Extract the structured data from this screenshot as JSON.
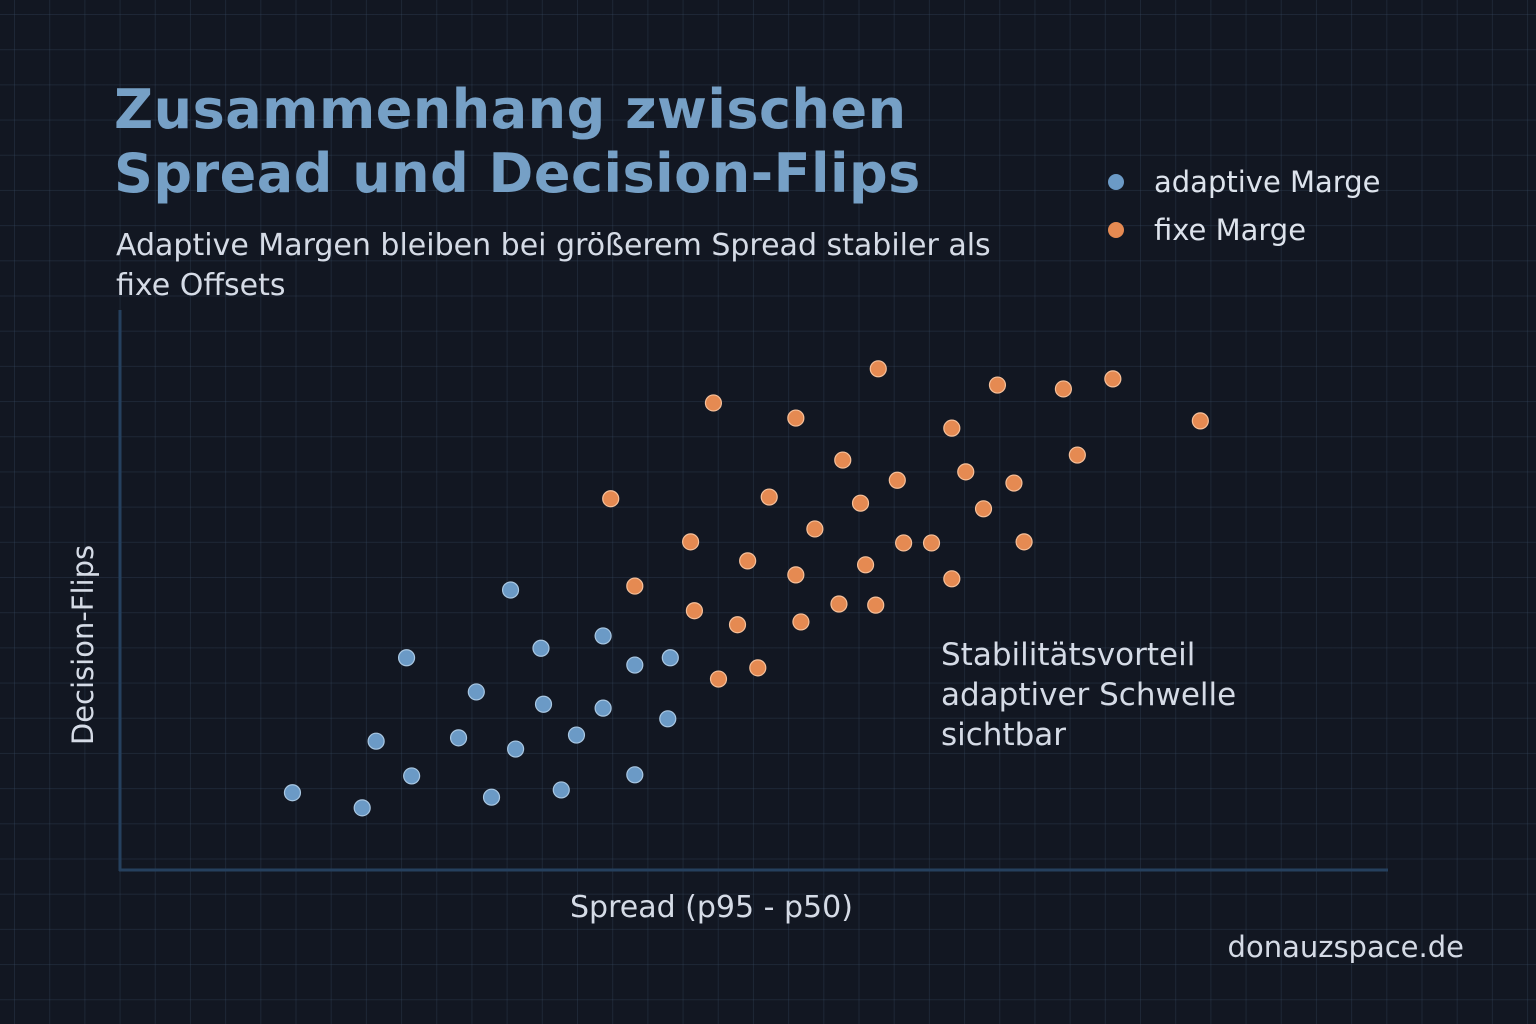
{
  "chart_data": {
    "type": "scatter",
    "title": "Zusammenhang zwischen Spread und Decision-Flips",
    "subtitle": "Adaptive Margen bleiben bei größerem Spread stabiler als fixe Offsets",
    "xlabel": "Spread (p95 - p50)",
    "ylabel": "Decision-Flips",
    "xlim": [
      0,
      10
    ],
    "ylim": [
      0,
      10
    ],
    "grid": true,
    "ticks_shown": false,
    "legend_position": "top-right",
    "annotation": [
      "Stabilitätsvorteil",
      "adaptiver Schwelle",
      "sichtbar"
    ],
    "series": [
      {
        "name": "adaptive Marge",
        "color": "#6b9ac6",
        "points": [
          [
            1.36,
            1.38
          ],
          [
            1.91,
            1.11
          ],
          [
            2.02,
            2.3
          ],
          [
            2.26,
            3.79
          ],
          [
            2.3,
            1.68
          ],
          [
            2.67,
            2.36
          ],
          [
            2.81,
            3.18
          ],
          [
            2.93,
            1.3
          ],
          [
            3.08,
            5.0
          ],
          [
            3.12,
            2.16
          ],
          [
            3.32,
            3.96
          ],
          [
            3.34,
            2.96
          ],
          [
            3.48,
            1.43
          ],
          [
            3.6,
            2.41
          ],
          [
            3.81,
            4.18
          ],
          [
            3.81,
            2.89
          ],
          [
            4.06,
            3.66
          ],
          [
            4.06,
            1.7
          ],
          [
            4.32,
            2.7
          ],
          [
            4.34,
            3.79
          ]
        ]
      },
      {
        "name": "fixe Marge",
        "color": "#e58a52",
        "points": [
          [
            3.87,
            6.63
          ],
          [
            4.06,
            5.07
          ],
          [
            4.5,
            5.86
          ],
          [
            4.53,
            4.63
          ],
          [
            4.68,
            8.34
          ],
          [
            4.72,
            3.41
          ],
          [
            4.87,
            4.38
          ],
          [
            4.95,
            5.52
          ],
          [
            5.03,
            3.61
          ],
          [
            5.12,
            6.66
          ],
          [
            5.33,
            8.07
          ],
          [
            5.33,
            5.27
          ],
          [
            5.37,
            4.43
          ],
          [
            5.48,
            6.09
          ],
          [
            5.67,
            4.75
          ],
          [
            5.7,
            7.32
          ],
          [
            5.84,
            6.55
          ],
          [
            5.88,
            5.45
          ],
          [
            5.96,
            4.73
          ],
          [
            5.98,
            8.95
          ],
          [
            6.13,
            6.96
          ],
          [
            6.18,
            5.84
          ],
          [
            6.4,
            5.84
          ],
          [
            6.56,
            5.2
          ],
          [
            6.56,
            7.89
          ],
          [
            6.67,
            7.11
          ],
          [
            6.81,
            6.45
          ],
          [
            6.92,
            8.66
          ],
          [
            7.05,
            6.91
          ],
          [
            7.13,
            5.86
          ],
          [
            7.44,
            8.59
          ],
          [
            7.55,
            7.41
          ],
          [
            7.83,
            8.77
          ],
          [
            8.52,
            8.02
          ]
        ]
      }
    ]
  },
  "watermark": "donauzspace.de"
}
